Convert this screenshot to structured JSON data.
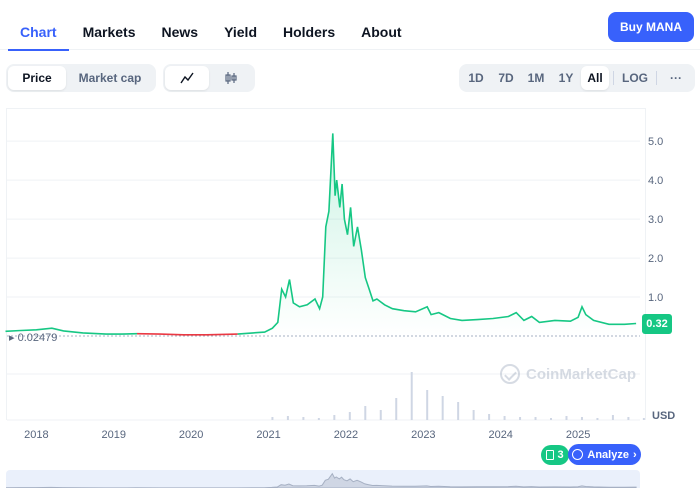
{
  "tabs": [
    {
      "label": "Chart",
      "active": true
    },
    {
      "label": "Markets",
      "active": false
    },
    {
      "label": "News",
      "active": false
    },
    {
      "label": "Yield",
      "active": false
    },
    {
      "label": "Holders",
      "active": false
    },
    {
      "label": "About",
      "active": false
    }
  ],
  "buy_button": "Buy MANA",
  "metric_toggle": {
    "price": "Price",
    "market_cap": "Market cap",
    "selected": "Price"
  },
  "chart_style_toggle": {
    "line_icon": "line-chart-icon",
    "candle_icon": "candlestick-icon",
    "selected": "line"
  },
  "ranges": [
    "1D",
    "7D",
    "1M",
    "1Y",
    "All"
  ],
  "selected_range": "All",
  "log_label": "LOG",
  "more_label": "···",
  "current_price_label": "0.32",
  "min_price_label": "0.02479",
  "currency_label": "USD",
  "watermark": "CoinMarketCap",
  "news_count": "3",
  "analyze_label": "Analyze",
  "colors": {
    "accent": "#3861fb",
    "up": "#16c784",
    "down": "#ea3943"
  },
  "chart_data": {
    "type": "line",
    "title": "",
    "xlabel": "",
    "ylabel": "",
    "y_ticks": [
      "1.0",
      "2.0",
      "3.0",
      "4.0",
      "5.0"
    ],
    "x_ticks": [
      "2018",
      "2019",
      "2020",
      "2021",
      "2022",
      "2023",
      "2024",
      "2025"
    ],
    "ylim": [
      0,
      5.8
    ],
    "grid": true,
    "series": [
      {
        "x": [
          2017.6,
          2017.8,
          2018.0,
          2018.2,
          2018.35,
          2018.6,
          2018.9,
          2019.1,
          2019.3,
          2019.6,
          2019.9,
          2020.2,
          2020.4,
          2020.6,
          2020.8,
          2020.95,
          2021.05,
          2021.12,
          2021.17,
          2021.22,
          2021.27,
          2021.32,
          2021.4,
          2021.5,
          2021.6,
          2021.66,
          2021.7,
          2021.74,
          2021.78,
          2021.83,
          2021.86,
          2021.88,
          2021.92,
          2021.95,
          2021.98,
          2022.02,
          2022.06,
          2022.1,
          2022.15,
          2022.2,
          2022.25,
          2022.3,
          2022.35,
          2022.4,
          2022.5,
          2022.6,
          2022.75,
          2022.9,
          2023.05,
          2023.1,
          2023.2,
          2023.35,
          2023.5,
          2023.7,
          2023.9,
          2024.1,
          2024.2,
          2024.3,
          2024.4,
          2024.5,
          2024.7,
          2024.9,
          2025.0,
          2025.05,
          2025.1,
          2025.2,
          2025.4,
          2025.6,
          2025.75
        ],
        "values": [
          0.12,
          0.14,
          0.16,
          0.2,
          0.13,
          0.08,
          0.05,
          0.05,
          0.06,
          0.05,
          0.03,
          0.03,
          0.04,
          0.05,
          0.08,
          0.1,
          0.2,
          0.35,
          1.2,
          1.0,
          1.45,
          0.85,
          0.75,
          0.8,
          0.95,
          0.7,
          1.0,
          2.8,
          3.2,
          5.2,
          3.6,
          4.0,
          3.3,
          3.9,
          3.0,
          2.6,
          3.3,
          2.3,
          2.8,
          2.2,
          1.5,
          1.2,
          0.9,
          0.95,
          0.8,
          0.7,
          0.65,
          0.62,
          0.75,
          0.55,
          0.6,
          0.45,
          0.4,
          0.42,
          0.45,
          0.5,
          0.6,
          0.4,
          0.5,
          0.35,
          0.4,
          0.38,
          0.48,
          0.75,
          0.55,
          0.4,
          0.3,
          0.3,
          0.32
        ]
      }
    ]
  }
}
